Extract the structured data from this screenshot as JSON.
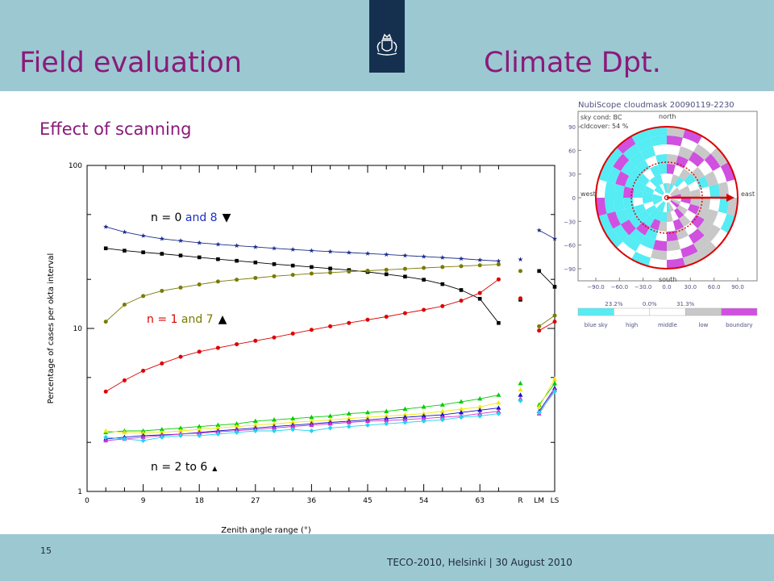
{
  "slide": {
    "title_left": "Field evaluation",
    "title_right": "Climate Dpt.",
    "subtitle": "Effect of scanning",
    "page_number": "15",
    "footer": "TECO-2010, Helsinki | 30 August 2010",
    "colors": {
      "header_band": "#9cc8d2",
      "title": "#8a1a7a",
      "logo_box": "#15304f"
    },
    "logo_icon": "royal-coat-of-arms-icon"
  },
  "chart_data": [
    {
      "type": "line",
      "ylog": true,
      "ylim": [
        1,
        100
      ],
      "xlim": [
        0,
        75
      ],
      "xlabel": "Zenith angle range (°)",
      "ylabel": "Percentage of cases per okta interval",
      "x_ticks": [
        "0",
        "9",
        "18",
        "27",
        "36",
        "45",
        "54",
        "63",
        "R",
        "LM",
        "LS"
      ],
      "y_ticks": [
        "1",
        "10",
        "100"
      ],
      "annotations": {
        "n08": {
          "prefix": "n = 0 ",
          "and": "and 8",
          "marker": "▼"
        },
        "n17": {
          "prefix": "n = ",
          "n1": "1",
          "and": " and 7",
          "marker": "▲"
        },
        "n26": {
          "text": "n = 2 to 6",
          "marker": "▲"
        }
      },
      "series": [
        {
          "color": "#1a2b8c",
          "marker": "star",
          "x": [
            3,
            6,
            9,
            12,
            15,
            18,
            21,
            24,
            27,
            30,
            33,
            36,
            39,
            42,
            45,
            48,
            51,
            54,
            57,
            60,
            63,
            66
          ],
          "y": [
            42,
            39,
            37,
            35.5,
            34.5,
            33.5,
            32.8,
            32.2,
            31.6,
            31,
            30.5,
            30,
            29.6,
            29.2,
            28.8,
            28.4,
            28,
            27.6,
            27.2,
            26.8,
            26.3,
            25.9
          ],
          "extras": {
            "x": [
              69.5,
              72.5,
              75
            ],
            "y": [
              26.5,
              40,
              35.5
            ]
          }
        },
        {
          "color": "#000000",
          "marker": "square",
          "x": [
            3,
            6,
            9,
            12,
            15,
            18,
            21,
            24,
            27,
            30,
            33,
            36,
            39,
            42,
            45,
            48,
            51,
            54,
            57,
            60,
            63,
            66
          ],
          "y": [
            31,
            30,
            29.3,
            28.7,
            28,
            27.3,
            26.6,
            26,
            25.4,
            24.8,
            24.3,
            23.8,
            23.3,
            22.8,
            22.2,
            21.5,
            20.8,
            19.9,
            18.7,
            17.2,
            15.2,
            10.8
          ],
          "extras": {
            "x": [
              69.5,
              72.5,
              75
            ],
            "y": [
              15,
              22.5,
              18
            ]
          }
        },
        {
          "color": "#7a7a00",
          "marker": "circle",
          "x": [
            3,
            6,
            9,
            12,
            15,
            18,
            21,
            24,
            27,
            30,
            33,
            36,
            39,
            42,
            45,
            48,
            51,
            54,
            57,
            60,
            63,
            66
          ],
          "y": [
            11,
            14,
            15.8,
            17,
            17.8,
            18.6,
            19.4,
            19.9,
            20.4,
            20.9,
            21.3,
            21.7,
            22,
            22.3,
            22.6,
            22.9,
            23.2,
            23.5,
            23.8,
            24.1,
            24.4,
            24.7
          ],
          "extras": {
            "x": [
              69.5,
              72.5,
              75
            ],
            "y": [
              22.5,
              10.3,
              12
            ]
          }
        },
        {
          "color": "#dd0000",
          "marker": "circle",
          "x": [
            3,
            6,
            9,
            12,
            15,
            18,
            21,
            24,
            27,
            30,
            33,
            36,
            39,
            42,
            45,
            48,
            51,
            54,
            57,
            60,
            63,
            66
          ],
          "y": [
            4.1,
            4.8,
            5.5,
            6.1,
            6.7,
            7.2,
            7.6,
            8,
            8.4,
            8.8,
            9.3,
            9.8,
            10.3,
            10.8,
            11.3,
            11.8,
            12.4,
            13,
            13.7,
            14.8,
            16.5,
            20
          ],
          "extras": {
            "x": [
              69.5,
              72.5,
              75
            ],
            "y": [
              15.3,
              9.7,
              11
            ]
          }
        },
        {
          "color": "#00cc00",
          "marker": "triangle",
          "x": [
            3,
            6,
            9,
            12,
            15,
            18,
            21,
            24,
            27,
            30,
            33,
            36,
            39,
            42,
            45,
            48,
            51,
            54,
            57,
            60,
            63,
            66
          ],
          "y": [
            2.3,
            2.35,
            2.35,
            2.4,
            2.45,
            2.5,
            2.55,
            2.6,
            2.7,
            2.75,
            2.8,
            2.85,
            2.9,
            3,
            3.05,
            3.1,
            3.2,
            3.3,
            3.4,
            3.55,
            3.7,
            3.9
          ],
          "extras": {
            "x": [
              69.5,
              72.5,
              75
            ],
            "y": [
              4.6,
              3.4,
              4.6
            ]
          }
        },
        {
          "color": "#f0e800",
          "marker": "triangle",
          "x": [
            3,
            6,
            9,
            12,
            15,
            18,
            21,
            24,
            27,
            30,
            33,
            36,
            39,
            42,
            45,
            48,
            51,
            54,
            57,
            60,
            63,
            66
          ],
          "y": [
            2.35,
            2.3,
            2.28,
            2.3,
            2.35,
            2.4,
            2.45,
            2.5,
            2.55,
            2.6,
            2.65,
            2.7,
            2.75,
            2.8,
            2.85,
            2.9,
            2.95,
            3,
            3.1,
            3.2,
            3.3,
            3.5
          ],
          "extras": {
            "x": [
              69.5,
              72.5,
              75
            ],
            "y": [
              4.2,
              3.3,
              4.9
            ]
          }
        },
        {
          "color": "#1010cc",
          "marker": "triangle",
          "x": [
            3,
            6,
            9,
            12,
            15,
            18,
            21,
            24,
            27,
            30,
            33,
            36,
            39,
            42,
            45,
            48,
            51,
            54,
            57,
            60,
            63,
            66
          ],
          "y": [
            2.1,
            2.15,
            2.2,
            2.22,
            2.25,
            2.3,
            2.35,
            2.4,
            2.45,
            2.5,
            2.55,
            2.6,
            2.65,
            2.7,
            2.75,
            2.8,
            2.85,
            2.9,
            2.95,
            3.05,
            3.15,
            3.25
          ],
          "extras": {
            "x": [
              69.5,
              72.5,
              75
            ],
            "y": [
              3.9,
              3.1,
              4.3
            ]
          }
        },
        {
          "color": "#cc33cc",
          "marker": "triangle",
          "x": [
            3,
            6,
            9,
            12,
            15,
            18,
            21,
            24,
            27,
            30,
            33,
            36,
            39,
            42,
            45,
            48,
            51,
            54,
            57,
            60,
            63,
            66
          ],
          "y": [
            2.05,
            2.1,
            2.15,
            2.2,
            2.25,
            2.28,
            2.32,
            2.36,
            2.4,
            2.45,
            2.5,
            2.55,
            2.6,
            2.65,
            2.7,
            2.72,
            2.76,
            2.8,
            2.85,
            2.9,
            3,
            3.1
          ],
          "extras": {
            "x": [
              69.5,
              72.5,
              75
            ],
            "y": [
              3.7,
              3,
              4.2
            ]
          }
        },
        {
          "color": "#22d4ee",
          "marker": "diamond",
          "x": [
            3,
            6,
            9,
            12,
            15,
            18,
            21,
            24,
            27,
            30,
            33,
            36,
            39,
            42,
            45,
            48,
            51,
            54,
            57,
            60,
            63,
            66
          ],
          "y": [
            2.15,
            2.1,
            2.05,
            2.15,
            2.2,
            2.2,
            2.25,
            2.3,
            2.35,
            2.35,
            2.4,
            2.35,
            2.45,
            2.5,
            2.55,
            2.6,
            2.65,
            2.7,
            2.75,
            2.85,
            2.9,
            3
          ],
          "extras": {
            "x": [
              69.5,
              72.5,
              75
            ],
            "y": [
              3.6,
              3.05,
              4.1
            ]
          }
        }
      ]
    },
    {
      "type": "heatmap",
      "title": "NubiScope cloudmask 20090119-2230",
      "info_lines": [
        "sky cond: BC",
        "cldcover: 54 %"
      ],
      "compass": {
        "north": "north",
        "south": "south",
        "west": "west",
        "east": "east"
      },
      "y_ticks": [
        "90",
        "60",
        "30",
        "0",
        "−30",
        "−60",
        "−90"
      ],
      "x_ticks": [
        "−90.0",
        "−60.0",
        "−30.0",
        "0.0",
        "30.0",
        "60.0",
        "90.0"
      ],
      "legend_percents": [
        "23.2%",
        "0.0%",
        "31.3%"
      ],
      "legend": [
        {
          "label": "blue sky",
          "color": "#55ecf4"
        },
        {
          "label": "high",
          "color": "#ffffff"
        },
        {
          "label": "middle",
          "color": "#ffffff"
        },
        {
          "label": "low",
          "color": "#c8c8c8"
        },
        {
          "label": "boundary",
          "color": "#d050e0"
        }
      ]
    }
  ]
}
